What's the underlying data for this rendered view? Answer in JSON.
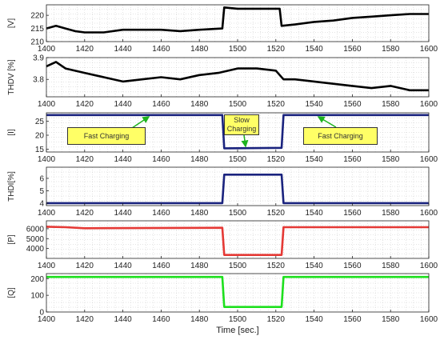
{
  "chart_data": [
    {
      "type": "line",
      "ylabel": "[V]",
      "xlim": [
        1400,
        1600
      ],
      "ylim": [
        210,
        224
      ],
      "yticks": [
        210,
        215,
        220
      ],
      "xticks": [
        1400,
        1420,
        1440,
        1460,
        1480,
        1500,
        1520,
        1540,
        1560,
        1580,
        1600
      ],
      "grid": true,
      "series": [
        {
          "color": "#000000",
          "x": [
            1400,
            1405,
            1410,
            1415,
            1420,
            1430,
            1440,
            1450,
            1460,
            1470,
            1480,
            1492,
            1493,
            1500,
            1510,
            1522,
            1523,
            1530,
            1540,
            1550,
            1560,
            1570,
            1580,
            1590,
            1600
          ],
          "y": [
            215,
            216,
            215,
            214,
            213.5,
            213.5,
            214.5,
            214.5,
            214.5,
            214,
            214.5,
            215,
            223,
            222.5,
            222.5,
            222.5,
            216,
            216.5,
            217.5,
            218,
            219,
            219.5,
            220,
            220.5,
            220.5
          ]
        }
      ]
    },
    {
      "type": "line",
      "ylabel": "THDV [%]",
      "xlim": [
        1400,
        1600
      ],
      "ylim": [
        3.72,
        3.9
      ],
      "yticks": [
        3.8,
        3.9
      ],
      "xticks": [
        1400,
        1420,
        1440,
        1460,
        1480,
        1500,
        1520,
        1540,
        1560,
        1580,
        1600
      ],
      "grid": true,
      "series": [
        {
          "color": "#000000",
          "x": [
            1400,
            1405,
            1410,
            1420,
            1430,
            1440,
            1450,
            1460,
            1470,
            1480,
            1490,
            1500,
            1510,
            1520,
            1524,
            1530,
            1540,
            1550,
            1560,
            1570,
            1580,
            1590,
            1600
          ],
          "y": [
            3.86,
            3.88,
            3.85,
            3.83,
            3.81,
            3.79,
            3.8,
            3.81,
            3.8,
            3.82,
            3.83,
            3.85,
            3.85,
            3.84,
            3.8,
            3.8,
            3.79,
            3.78,
            3.77,
            3.76,
            3.77,
            3.75,
            3.75
          ]
        }
      ]
    },
    {
      "type": "line",
      "ylabel": "[I]",
      "xlim": [
        1400,
        1600
      ],
      "ylim": [
        14,
        28
      ],
      "yticks": [
        15,
        20,
        25
      ],
      "xticks": [
        1400,
        1420,
        1440,
        1460,
        1480,
        1500,
        1520,
        1540,
        1560,
        1580,
        1600
      ],
      "grid": true,
      "series": [
        {
          "color": "#1a237e",
          "x": [
            1400,
            1492,
            1493,
            1523,
            1524,
            1600
          ],
          "y": [
            27.2,
            27.2,
            15.3,
            15.5,
            27.2,
            27.2
          ]
        }
      ]
    },
    {
      "type": "line",
      "ylabel": "THDI[%]",
      "xlim": [
        1400,
        1600
      ],
      "ylim": [
        3.8,
        6.9
      ],
      "yticks": [
        4,
        5,
        6
      ],
      "xticks": [
        1400,
        1420,
        1440,
        1460,
        1480,
        1500,
        1520,
        1540,
        1560,
        1580,
        1600
      ],
      "grid": true,
      "series": [
        {
          "color": "#1a237e",
          "x": [
            1400,
            1492,
            1493,
            1523,
            1524,
            1600
          ],
          "y": [
            4.0,
            4.0,
            6.3,
            6.3,
            4.0,
            4.0
          ]
        }
      ]
    },
    {
      "type": "line",
      "ylabel": "[P]",
      "xlim": [
        1400,
        1600
      ],
      "ylim": [
        3000,
        6800
      ],
      "yticks": [
        4000,
        5000,
        6000
      ],
      "xticks": [
        1400,
        1420,
        1440,
        1460,
        1480,
        1500,
        1520,
        1540,
        1560,
        1580,
        1600
      ],
      "grid": true,
      "series": [
        {
          "color": "#e53935",
          "x": [
            1400,
            1410,
            1420,
            1492,
            1493,
            1523,
            1524,
            1600
          ],
          "y": [
            6200,
            6150,
            6050,
            6100,
            3350,
            3350,
            6150,
            6150
          ]
        }
      ]
    },
    {
      "type": "line",
      "ylabel": "[Q]",
      "xlim": [
        1400,
        1600
      ],
      "ylim": [
        0,
        230
      ],
      "yticks": [
        0,
        100,
        200
      ],
      "xticks": [
        1400,
        1420,
        1440,
        1460,
        1480,
        1500,
        1520,
        1540,
        1560,
        1580,
        1600
      ],
      "xlabel": "Time [sec.]",
      "grid": true,
      "series": [
        {
          "color": "#1de01d",
          "x": [
            1400,
            1492,
            1493,
            1523,
            1524,
            1600
          ],
          "y": [
            210,
            210,
            30,
            30,
            210,
            210
          ]
        }
      ]
    }
  ],
  "annotations": [
    {
      "text": "Fast Charging",
      "color": "#ffff66"
    },
    {
      "text": "Slow Charging",
      "color": "#ffff66"
    },
    {
      "text": "Fast Charging",
      "color": "#ffff66"
    }
  ]
}
